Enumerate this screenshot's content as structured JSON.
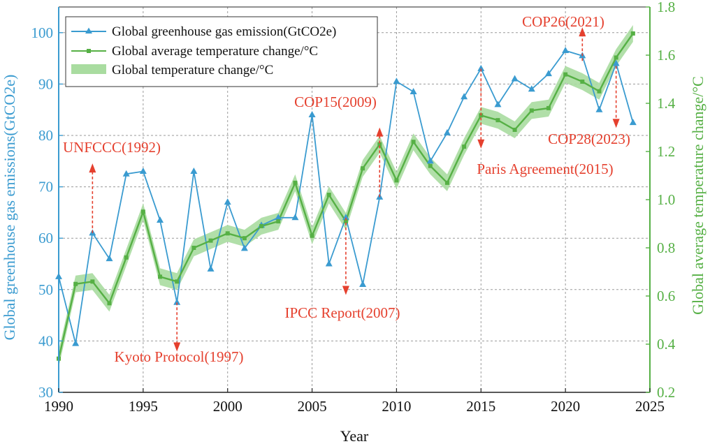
{
  "chart_data": {
    "type": "line",
    "xlabel": "Year",
    "ylabel_left": "Global greenhouse gas emissions(GtCO2e)",
    "ylabel_right": "Global average temperature change/°C",
    "xlim": [
      1990,
      2025
    ],
    "ylim_left": [
      30,
      105
    ],
    "ylim_right": [
      0.2,
      1.8
    ],
    "x_ticks": [
      1990,
      1995,
      2000,
      2005,
      2010,
      2015,
      2020,
      2025
    ],
    "y_left_ticks": [
      30,
      40,
      50,
      60,
      70,
      80,
      90,
      100
    ],
    "y_right_ticks": [
      "0.2",
      "0.4",
      "0.6",
      "0.8",
      "1.0",
      "1.2",
      "1.4",
      "1.6",
      "1.8"
    ],
    "grid": true,
    "legend_position": "top-left",
    "colors": {
      "emission": "#3a9bd0",
      "temperature": "#56b045",
      "band": "#a9dca0",
      "annotation": "#e5402e"
    },
    "series": [
      {
        "name": "Global greenhouse gas emission(GtCO2e)",
        "axis": "left",
        "marker": "triangle",
        "x": [
          1990,
          1991,
          1992,
          1993,
          1994,
          1995,
          1996,
          1997,
          1998,
          1999,
          2000,
          2001,
          2002,
          2003,
          2004,
          2005,
          2006,
          2007,
          2008,
          2009,
          2010,
          2011,
          2012,
          2013,
          2014,
          2015,
          2016,
          2017,
          2018,
          2019,
          2020,
          2021,
          2022,
          2023,
          2024
        ],
        "y": [
          52.5,
          39.5,
          61,
          56,
          72.5,
          73,
          63.5,
          47.5,
          73,
          54,
          67,
          58,
          62.5,
          64,
          64,
          84,
          55,
          64,
          51,
          68,
          90.5,
          88.5,
          75,
          80.5,
          87.5,
          93,
          86,
          91,
          89,
          92,
          96.5,
          95.5,
          85,
          94,
          82.5
        ]
      },
      {
        "name": "Global average temperature change/°C",
        "axis": "right",
        "marker": "square",
        "x": [
          1990,
          1991,
          1992,
          1993,
          1994,
          1995,
          1996,
          1997,
          1998,
          1999,
          2000,
          2001,
          2002,
          2003,
          2004,
          2005,
          2006,
          2007,
          2008,
          2009,
          2010,
          2011,
          2012,
          2013,
          2014,
          2015,
          2016,
          2017,
          2018,
          2019,
          2020,
          2021,
          2022,
          2023,
          2024
        ],
        "y": [
          0.34,
          0.65,
          0.66,
          0.57,
          0.76,
          0.95,
          0.68,
          0.66,
          0.8,
          0.83,
          0.86,
          0.84,
          0.89,
          0.91,
          1.07,
          0.85,
          1.02,
          0.91,
          1.13,
          1.23,
          1.08,
          1.24,
          1.14,
          1.07,
          1.22,
          1.35,
          1.33,
          1.29,
          1.37,
          1.38,
          1.52,
          1.49,
          1.45,
          1.59,
          1.69
        ]
      },
      {
        "name": "Global temperature change/°C",
        "axis": "right",
        "type": "band",
        "half_width": 0.035
      }
    ],
    "annotations": [
      {
        "text": "UNFCCC(1992)",
        "x": 1992,
        "from_y": 61,
        "to_y": 74,
        "axis": "left",
        "direction": "up"
      },
      {
        "text": "Kyoto Protocol(1997)",
        "x": 1997,
        "from_y": 47.5,
        "to_y": 38.5,
        "axis": "left",
        "direction": "down"
      },
      {
        "text": "IPCC Report(2007)",
        "x": 2007,
        "from_y": 64,
        "to_y": 49.5,
        "axis": "left",
        "direction": "down"
      },
      {
        "text": "COP15(2009)",
        "x": 2009,
        "from_y": 68,
        "to_y": 81,
        "axis": "left",
        "direction": "up"
      },
      {
        "text": "Paris Agreement(2015)",
        "x": 2015,
        "from_y": 93,
        "to_y": 78,
        "axis": "left",
        "direction": "down"
      },
      {
        "text": "COP26(2021)",
        "x": 2021,
        "from_y": 94.5,
        "to_y": 100.5,
        "axis": "left",
        "direction": "up"
      },
      {
        "text": "COP28(2023)",
        "x": 2023,
        "from_y": 93.5,
        "to_y": 82,
        "axis": "left",
        "direction": "down"
      }
    ]
  }
}
